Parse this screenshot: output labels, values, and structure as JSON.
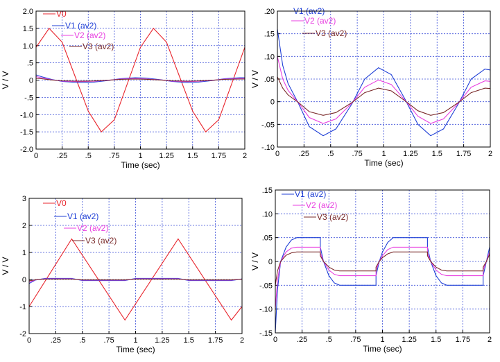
{
  "chart_data": [
    {
      "type": "line",
      "xlabel": "Time (sec)",
      "ylabel": "V / V",
      "xlim": [
        0,
        2
      ],
      "ylim": [
        -2.0,
        2.0
      ],
      "grid": true,
      "legend": "top-left",
      "x_ticks": [
        "0",
        ".25",
        ".5",
        ".75",
        "1",
        "1.25",
        "1.5",
        "1.75",
        "2"
      ],
      "y_ticks": [
        {
          "v": 2.0,
          "label": "2.0"
        },
        {
          "v": 1.5,
          "label": "1.5"
        },
        {
          "v": 1.0,
          "label": "1.0"
        },
        {
          "v": 0.5,
          "label": ".5"
        },
        {
          "v": 0,
          "label": "0"
        },
        {
          "v": -0.5,
          "label": "-.5"
        },
        {
          "v": -1.0,
          "label": "-1.0"
        },
        {
          "v": -1.5,
          "label": "-1.5"
        },
        {
          "v": -2.0,
          "label": "-2.0"
        }
      ],
      "series": [
        {
          "name": "V0",
          "color": "#e8242c",
          "x": [
            0,
            0.125,
            0.25,
            0.375,
            0.5,
            0.625,
            0.75,
            0.875,
            1.0,
            1.125,
            1.25,
            1.375,
            1.5,
            1.625,
            1.75,
            1.875,
            2.0
          ],
          "y": [
            0.95,
            1.5,
            1.1,
            0.1,
            -0.9,
            -1.5,
            -1.15,
            -0.1,
            0.95,
            1.5,
            1.1,
            0.1,
            -0.9,
            -1.5,
            -1.15,
            -0.1,
            0.95
          ]
        },
        {
          "name": "V1 (av2)",
          "color": "#1f3fd6",
          "x": [
            0,
            0.05,
            0.15,
            0.25,
            0.4,
            0.55,
            0.7,
            0.8,
            0.95,
            1.05,
            1.2,
            1.3,
            1.45,
            1.55,
            1.7,
            1.8,
            1.95,
            2.0
          ],
          "y": [
            0.15,
            0.1,
            0.02,
            -0.04,
            -0.07,
            -0.06,
            -0.01,
            0.04,
            0.07,
            0.06,
            0.01,
            -0.04,
            -0.07,
            -0.06,
            -0.01,
            0.04,
            0.07,
            0.07
          ]
        },
        {
          "name": "V2 (av2)",
          "color": "#e83fe0",
          "x": [
            0,
            0.05,
            0.15,
            0.25,
            0.4,
            0.55,
            0.7,
            0.8,
            0.95,
            1.05,
            1.2,
            1.3,
            1.45,
            1.55,
            1.7,
            1.8,
            1.95,
            2.0
          ],
          "y": [
            0.1,
            0.07,
            0.01,
            -0.03,
            -0.045,
            -0.035,
            -0.005,
            0.03,
            0.045,
            0.035,
            0.005,
            -0.03,
            -0.045,
            -0.035,
            -0.005,
            0.03,
            0.045,
            0.045
          ]
        },
        {
          "name": "V3 (av2)",
          "color": "#7a2a2a",
          "x": [
            0,
            0.05,
            0.15,
            0.25,
            0.4,
            0.55,
            0.7,
            0.8,
            0.95,
            1.05,
            1.2,
            1.3,
            1.45,
            1.55,
            1.7,
            1.8,
            1.95,
            2.0
          ],
          "y": [
            0.05,
            0.04,
            0.005,
            -0.02,
            -0.03,
            -0.025,
            -0.003,
            0.02,
            0.03,
            0.025,
            0.003,
            -0.02,
            -0.03,
            -0.025,
            -0.003,
            0.02,
            0.03,
            0.03
          ]
        }
      ]
    },
    {
      "type": "line",
      "xlabel": "Time (sec)",
      "ylabel": "V / V",
      "xlim": [
        0,
        2
      ],
      "ylim": [
        -0.1,
        0.2
      ],
      "grid": true,
      "legend": "top-left",
      "x_ticks": [
        "0",
        ".25",
        ".5",
        ".75",
        "1",
        "1.25",
        "1.5",
        "1.75",
        "2"
      ],
      "y_ticks": [
        {
          "v": 0.2,
          "label": ".20"
        },
        {
          "v": 0.15,
          "label": ".15"
        },
        {
          "v": 0.1,
          "label": ".10"
        },
        {
          "v": 0.05,
          "label": ".05"
        },
        {
          "v": 0,
          "label": "0"
        },
        {
          "v": -0.05,
          "label": "-.05"
        },
        {
          "v": -0.1,
          "label": "-.10"
        }
      ],
      "series": [
        {
          "name": "V1 (av2)",
          "color": "#1f3fd6",
          "x": [
            0,
            0.05,
            0.1,
            0.2,
            0.3,
            0.43,
            0.55,
            0.7,
            0.82,
            0.95,
            1.07,
            1.2,
            1.32,
            1.44,
            1.56,
            1.7,
            1.82,
            1.95,
            2.0
          ],
          "y": [
            0.16,
            0.08,
            0.04,
            -0.005,
            -0.055,
            -0.075,
            -0.06,
            -0.005,
            0.05,
            0.075,
            0.06,
            0.005,
            -0.05,
            -0.075,
            -0.06,
            -0.005,
            0.05,
            0.072,
            0.07
          ]
        },
        {
          "name": "V2 (av2)",
          "color": "#e83fe0",
          "x": [
            0,
            0.05,
            0.1,
            0.2,
            0.3,
            0.43,
            0.55,
            0.7,
            0.82,
            0.95,
            1.07,
            1.2,
            1.32,
            1.44,
            1.56,
            1.7,
            1.82,
            1.95,
            2.0
          ],
          "y": [
            0.1,
            0.05,
            0.025,
            -0.003,
            -0.035,
            -0.048,
            -0.038,
            -0.003,
            0.032,
            0.048,
            0.038,
            0.003,
            -0.032,
            -0.048,
            -0.038,
            -0.003,
            0.032,
            0.046,
            0.045
          ]
        },
        {
          "name": "V3 (av2)",
          "color": "#7a2a2a",
          "x": [
            0,
            0.05,
            0.1,
            0.2,
            0.3,
            0.43,
            0.55,
            0.7,
            0.82,
            0.95,
            1.07,
            1.2,
            1.32,
            1.44,
            1.56,
            1.7,
            1.82,
            1.95,
            2.0
          ],
          "y": [
            0.055,
            0.03,
            0.015,
            -0.002,
            -0.022,
            -0.03,
            -0.024,
            -0.002,
            0.02,
            0.03,
            0.024,
            0.002,
            -0.02,
            -0.03,
            -0.024,
            -0.002,
            0.02,
            0.03,
            0.029
          ]
        }
      ]
    },
    {
      "type": "line",
      "xlabel": "Time (sec)",
      "ylabel": "V / V",
      "xlim": [
        0,
        2
      ],
      "ylim": [
        -2,
        3
      ],
      "grid": true,
      "legend": "top-left",
      "x_ticks": [
        "0",
        ".25",
        ".5",
        ".75",
        "1",
        "1.25",
        "1.5",
        "1.75",
        "2"
      ],
      "y_ticks": [
        {
          "v": 3,
          "label": "3"
        },
        {
          "v": 2,
          "label": "2"
        },
        {
          "v": 1,
          "label": "1"
        },
        {
          "v": 0,
          "label": "0"
        },
        {
          "v": -1,
          "label": "-1"
        },
        {
          "v": -2,
          "label": "-2"
        }
      ],
      "series": [
        {
          "name": "V0",
          "color": "#e8242c",
          "x": [
            0,
            0.4,
            0.9,
            1.4,
            1.9,
            2.0
          ],
          "y": [
            -1.0,
            1.5,
            -1.5,
            1.5,
            -1.5,
            -1.0
          ]
        },
        {
          "name": "V1 (av2)",
          "color": "#1f3fd6",
          "x": [
            0,
            0.06,
            0.15,
            0.4,
            0.5,
            0.9,
            1.0,
            1.4,
            1.5,
            1.9,
            2.0
          ],
          "y": [
            -0.15,
            -0.02,
            0.04,
            0.04,
            -0.04,
            -0.04,
            0.04,
            0.04,
            -0.04,
            -0.04,
            0.02
          ]
        },
        {
          "name": "V2 (av2)",
          "color": "#e83fe0",
          "x": [
            0,
            0.06,
            0.15,
            0.4,
            0.5,
            0.9,
            1.0,
            1.4,
            1.5,
            1.9,
            2.0
          ],
          "y": [
            -0.1,
            -0.015,
            0.025,
            0.025,
            -0.025,
            -0.025,
            0.025,
            0.025,
            -0.025,
            -0.025,
            0.015
          ]
        },
        {
          "name": "V3 (av2)",
          "color": "#7a2a2a",
          "x": [
            0,
            0.06,
            0.15,
            0.4,
            0.5,
            0.9,
            1.0,
            1.4,
            1.5,
            1.9,
            2.0
          ],
          "y": [
            -0.05,
            -0.01,
            0.015,
            0.015,
            -0.015,
            -0.015,
            0.015,
            0.015,
            -0.015,
            -0.015,
            0.01
          ]
        }
      ]
    },
    {
      "type": "line",
      "xlabel": "Time (sec)",
      "ylabel": "V / V",
      "xlim": [
        0,
        2
      ],
      "ylim": [
        -0.15,
        0.15
      ],
      "grid": true,
      "legend": "top-left",
      "x_ticks": [
        "0",
        ".25",
        ".5",
        ".75",
        "1",
        "1.25",
        "1.5",
        "1.75",
        "2"
      ],
      "y_ticks": [
        {
          "v": 0.15,
          "label": ".15"
        },
        {
          "v": 0.1,
          "label": ".10"
        },
        {
          "v": 0.05,
          "label": ".05"
        },
        {
          "v": 0,
          "label": "0"
        },
        {
          "v": -0.05,
          "label": "-.05"
        },
        {
          "v": -0.1,
          "label": "-.10"
        },
        {
          "v": -0.15,
          "label": "-.15"
        }
      ],
      "series": [
        {
          "name": "V1 (av2)",
          "color": "#1f3fd6",
          "x": [
            0,
            0.02,
            0.05,
            0.1,
            0.15,
            0.2,
            0.3,
            0.42,
            0.42,
            0.45,
            0.5,
            0.55,
            0.6,
            0.7,
            0.94,
            0.94,
            0.97,
            1.0,
            1.05,
            1.1,
            1.2,
            1.42,
            1.42,
            1.45,
            1.5,
            1.55,
            1.6,
            1.7,
            1.94,
            1.94,
            1.97,
            2.0
          ],
          "y": [
            -0.15,
            -0.06,
            0.0,
            0.03,
            0.045,
            0.05,
            0.05,
            0.05,
            0.03,
            0.0,
            -0.03,
            -0.045,
            -0.05,
            -0.05,
            -0.05,
            -0.03,
            0.0,
            0.02,
            0.04,
            0.05,
            0.05,
            0.05,
            0.03,
            0.0,
            -0.03,
            -0.045,
            -0.05,
            -0.05,
            -0.05,
            -0.03,
            0.0,
            0.03
          ]
        },
        {
          "name": "V2 (av2)",
          "color": "#e83fe0",
          "x": [
            0,
            0.02,
            0.05,
            0.1,
            0.15,
            0.2,
            0.3,
            0.42,
            0.42,
            0.45,
            0.5,
            0.55,
            0.6,
            0.7,
            0.94,
            0.94,
            0.97,
            1.0,
            1.05,
            1.1,
            1.2,
            1.42,
            1.42,
            1.45,
            1.5,
            1.55,
            1.6,
            1.7,
            1.94,
            1.94,
            1.97,
            2.0
          ],
          "y": [
            -0.1,
            -0.04,
            0.0,
            0.02,
            0.028,
            0.03,
            0.03,
            0.03,
            0.018,
            0.0,
            -0.018,
            -0.027,
            -0.03,
            -0.03,
            -0.03,
            -0.018,
            0.0,
            0.012,
            0.025,
            0.03,
            0.03,
            0.03,
            0.018,
            0.0,
            -0.018,
            -0.027,
            -0.03,
            -0.03,
            -0.03,
            -0.018,
            0.0,
            0.02
          ]
        },
        {
          "name": "V3 (av2)",
          "color": "#7a2a2a",
          "x": [
            0,
            0.02,
            0.05,
            0.1,
            0.15,
            0.2,
            0.3,
            0.42,
            0.42,
            0.45,
            0.5,
            0.55,
            0.6,
            0.7,
            0.94,
            0.94,
            0.97,
            1.0,
            1.05,
            1.1,
            1.2,
            1.42,
            1.42,
            1.45,
            1.5,
            1.55,
            1.6,
            1.7,
            1.94,
            1.94,
            1.97,
            2.0
          ],
          "y": [
            -0.05,
            -0.02,
            0.0,
            0.013,
            0.018,
            0.02,
            0.02,
            0.02,
            0.012,
            0.0,
            -0.012,
            -0.018,
            -0.02,
            -0.02,
            -0.02,
            -0.012,
            0.0,
            0.008,
            0.016,
            0.02,
            0.02,
            0.02,
            0.012,
            0.0,
            -0.012,
            -0.018,
            -0.02,
            -0.02,
            -0.02,
            -0.012,
            0.0,
            0.015
          ]
        }
      ]
    }
  ]
}
